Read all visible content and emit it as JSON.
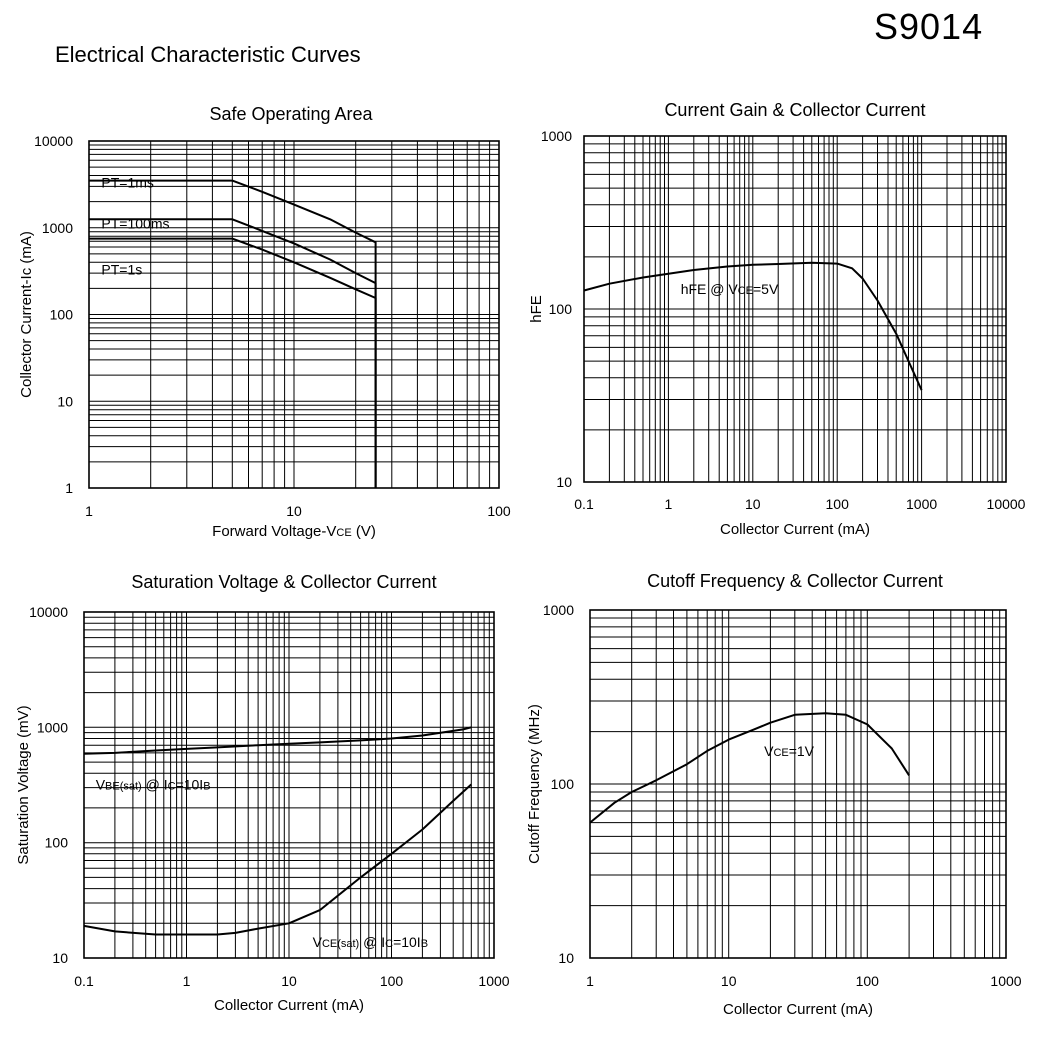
{
  "part_number": "S9014",
  "heading": "Electrical Characteristic Curves",
  "chart_data": [
    {
      "type": "line",
      "title": "Safe Operating Area",
      "xlabel_main": "Forward Voltage-V",
      "xlabel_sub": "CE",
      "xlabel_tail": " (V)",
      "ylabel": "Collector Current-Ic (mA)",
      "xscale": "log",
      "yscale": "log",
      "xlim": [
        1,
        100
      ],
      "ylim": [
        1,
        10000
      ],
      "xticks": [
        "1",
        "10",
        "100"
      ],
      "yticks": [
        "1",
        "10",
        "100",
        "1000",
        "10000"
      ],
      "grid": true,
      "series": [
        {
          "name": "PT=1ms",
          "x": [
            1,
            5,
            7,
            10,
            15,
            20,
            25,
            25
          ],
          "y": [
            3500,
            3500,
            2600,
            1850,
            1250,
            880,
            680,
            1
          ]
        },
        {
          "name": "PT=100ms",
          "x": [
            1,
            5,
            7,
            10,
            15,
            20,
            25,
            25
          ],
          "y": [
            1250,
            1250,
            920,
            660,
            430,
            300,
            230,
            1
          ]
        },
        {
          "name": "PT=1s",
          "x": [
            1,
            5,
            7,
            10,
            15,
            20,
            25,
            25
          ],
          "y": [
            750,
            750,
            560,
            400,
            265,
            195,
            155,
            1
          ]
        }
      ],
      "annotations": [
        {
          "text": "PT=1ms",
          "x": 1.15,
          "y": 2900
        },
        {
          "text": "PT=100ms",
          "x": 1.15,
          "y": 980
        },
        {
          "text": "PT=1s",
          "x": 1.15,
          "y": 290
        }
      ]
    },
    {
      "type": "line",
      "title": "Current Gain & Collector Current",
      "xlabel": "Collector Current (mA)",
      "ylabel": "hFE",
      "xscale": "log",
      "yscale": "log",
      "xlim": [
        0.1,
        10000
      ],
      "ylim": [
        10,
        1000
      ],
      "xticks": [
        "0.1",
        "1",
        "10",
        "100",
        "1000",
        "10000"
      ],
      "yticks": [
        "10",
        "100",
        "1000"
      ],
      "grid": true,
      "series": [
        {
          "name": "hFE @ VCE=5V",
          "x": [
            0.1,
            0.2,
            0.5,
            1,
            2,
            5,
            10,
            20,
            50,
            100,
            150,
            200,
            300,
            500,
            700,
            1000
          ],
          "y": [
            128,
            140,
            152,
            160,
            168,
            176,
            180,
            182,
            185,
            183,
            172,
            150,
            112,
            72,
            50,
            34
          ]
        }
      ],
      "annotation": {
        "pre": "hFE @ V",
        "sub": "CE",
        "post": "=5V",
        "x": 1.4,
        "y": 122
      }
    },
    {
      "type": "line",
      "title": "Saturation Voltage & Collector Current",
      "xlabel": "Collector Current (mA)",
      "ylabel": "Saturation Voltage (mV)",
      "xscale": "log",
      "yscale": "log",
      "xlim": [
        0.1,
        1000
      ],
      "ylim": [
        10,
        10000
      ],
      "xticks": [
        "0.1",
        "1",
        "10",
        "100",
        "1000"
      ],
      "yticks": [
        "10",
        "100",
        "1000",
        "10000"
      ],
      "grid": true,
      "series": [
        {
          "name": "VBE(sat) @ IC=10IB",
          "x": [
            0.1,
            0.2,
            0.5,
            1,
            2,
            5,
            10,
            20,
            50,
            100,
            200,
            500,
            600
          ],
          "y": [
            590,
            600,
            630,
            650,
            670,
            700,
            720,
            740,
            770,
            800,
            850,
            960,
            1000
          ]
        },
        {
          "name": "VCE(sat) @ IC=10IB",
          "x": [
            0.1,
            0.2,
            0.5,
            1,
            2,
            3,
            5,
            10,
            20,
            50,
            100,
            200,
            400,
            600
          ],
          "y": [
            19,
            17,
            16,
            16,
            16,
            16.5,
            18,
            20,
            26,
            50,
            80,
            130,
            230,
            320
          ]
        }
      ],
      "annotations": [
        {
          "parts": [
            [
              "V",
              0
            ],
            [
              "BE(sat)",
              1
            ],
            [
              " @ I",
              0
            ],
            [
              "C",
              1
            ],
            [
              "=10I",
              0
            ],
            [
              "B",
              1
            ]
          ],
          "x": 0.13,
          "y": 290
        },
        {
          "parts": [
            [
              "V",
              0
            ],
            [
              "CE(sat)",
              1
            ],
            [
              " @ I",
              0
            ],
            [
              "C",
              1
            ],
            [
              "=10I",
              0
            ],
            [
              "B",
              1
            ]
          ],
          "x": 17,
          "y": 12.5
        }
      ]
    },
    {
      "type": "line",
      "title": "Cutoff Frequency & Collector Current",
      "xlabel": "Collector Current (mA)",
      "ylabel": "Cutoff Frequency (MHz)",
      "xscale": "log",
      "yscale": "log",
      "xlim": [
        1,
        1000
      ],
      "ylim": [
        10,
        1000
      ],
      "xticks": [
        "1",
        "10",
        "100",
        "1000"
      ],
      "yticks": [
        "10",
        "100",
        "1000"
      ],
      "grid": true,
      "series": [
        {
          "name": "VCE=1V",
          "x": [
            1,
            1.5,
            2,
            3,
            5,
            7,
            10,
            15,
            20,
            30,
            50,
            70,
            100,
            150,
            200
          ],
          "y": [
            60,
            78,
            90,
            105,
            130,
            155,
            180,
            205,
            225,
            250,
            255,
            250,
            220,
            160,
            112
          ]
        }
      ],
      "annotation": {
        "pre": "V",
        "sub": "CE",
        "post": "=1V",
        "x": 18,
        "y": 145
      }
    }
  ]
}
